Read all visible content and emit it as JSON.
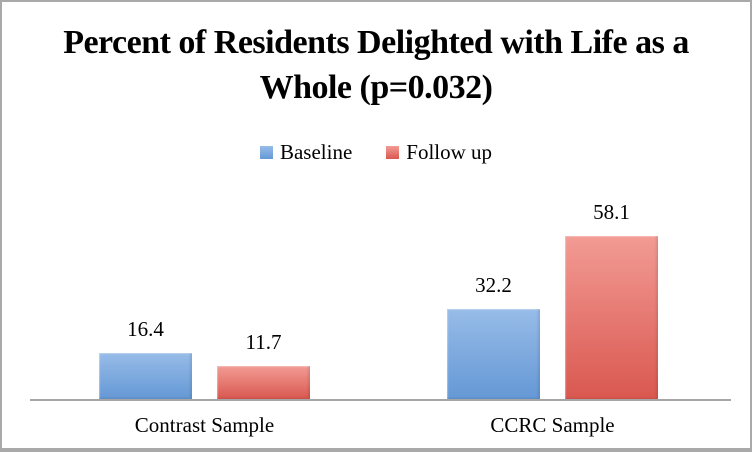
{
  "chart_data": {
    "type": "bar",
    "title": "Percent of Residents Delighted with Life as a Whole (p=0.032)",
    "categories": [
      "Contrast Sample",
      "CCRC Sample"
    ],
    "series": [
      {
        "name": "Baseline",
        "color": "#74a9df",
        "color_top": "#97bce8",
        "color_bottom": "#6598d5",
        "values": [
          16.4,
          32.2
        ]
      },
      {
        "name": "Follow up",
        "color": "#e4736c",
        "color_top": "#f29b94",
        "color_bottom": "#d95850",
        "values": [
          11.7,
          58.1
        ]
      }
    ],
    "data_labels": [
      [
        "16.4",
        "32.2"
      ],
      [
        "11.7",
        "58.1"
      ]
    ],
    "legend_position": "top",
    "grid": "off",
    "y_axis_visible": false,
    "axis_color": "#a6a6a6",
    "text_color": "#000000",
    "background_color": "#ffffff"
  }
}
